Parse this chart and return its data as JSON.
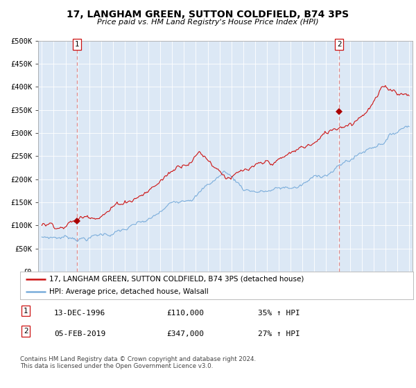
{
  "title": "17, LANGHAM GREEN, SUTTON COLDFIELD, B74 3PS",
  "subtitle": "Price paid vs. HM Land Registry's House Price Index (HPI)",
  "legend_line1": "17, LANGHAM GREEN, SUTTON COLDFIELD, B74 3PS (detached house)",
  "legend_line2": "HPI: Average price, detached house, Walsall",
  "sale1_date": "13-DEC-1996",
  "sale1_price": "£110,000",
  "sale1_hpi": "35% ↑ HPI",
  "sale2_date": "05-FEB-2019",
  "sale2_price": "£347,000",
  "sale2_hpi": "27% ↑ HPI",
  "footer": "Contains HM Land Registry data © Crown copyright and database right 2024.\nThis data is licensed under the Open Government Licence v3.0.",
  "hpi_color": "#7aaddb",
  "price_color": "#cc1111",
  "marker_color": "#aa0000",
  "dashed_line_color": "#dd8888",
  "background_color": "#ffffff",
  "plot_bg_color": "#dce8f5",
  "grid_color": "#ffffff",
  "ylim": [
    0,
    500000
  ],
  "xlim_start": 1993.7,
  "xlim_end": 2025.3,
  "sale1_x": 1996.96,
  "sale1_y": 110000,
  "sale2_x": 2019.09,
  "sale2_y": 347000,
  "yticks": [
    0,
    50000,
    100000,
    150000,
    200000,
    250000,
    300000,
    350000,
    400000,
    450000,
    500000
  ],
  "ytick_labels": [
    "£0",
    "£50K",
    "£100K",
    "£150K",
    "£200K",
    "£250K",
    "£300K",
    "£350K",
    "£400K",
    "£450K",
    "£500K"
  ]
}
